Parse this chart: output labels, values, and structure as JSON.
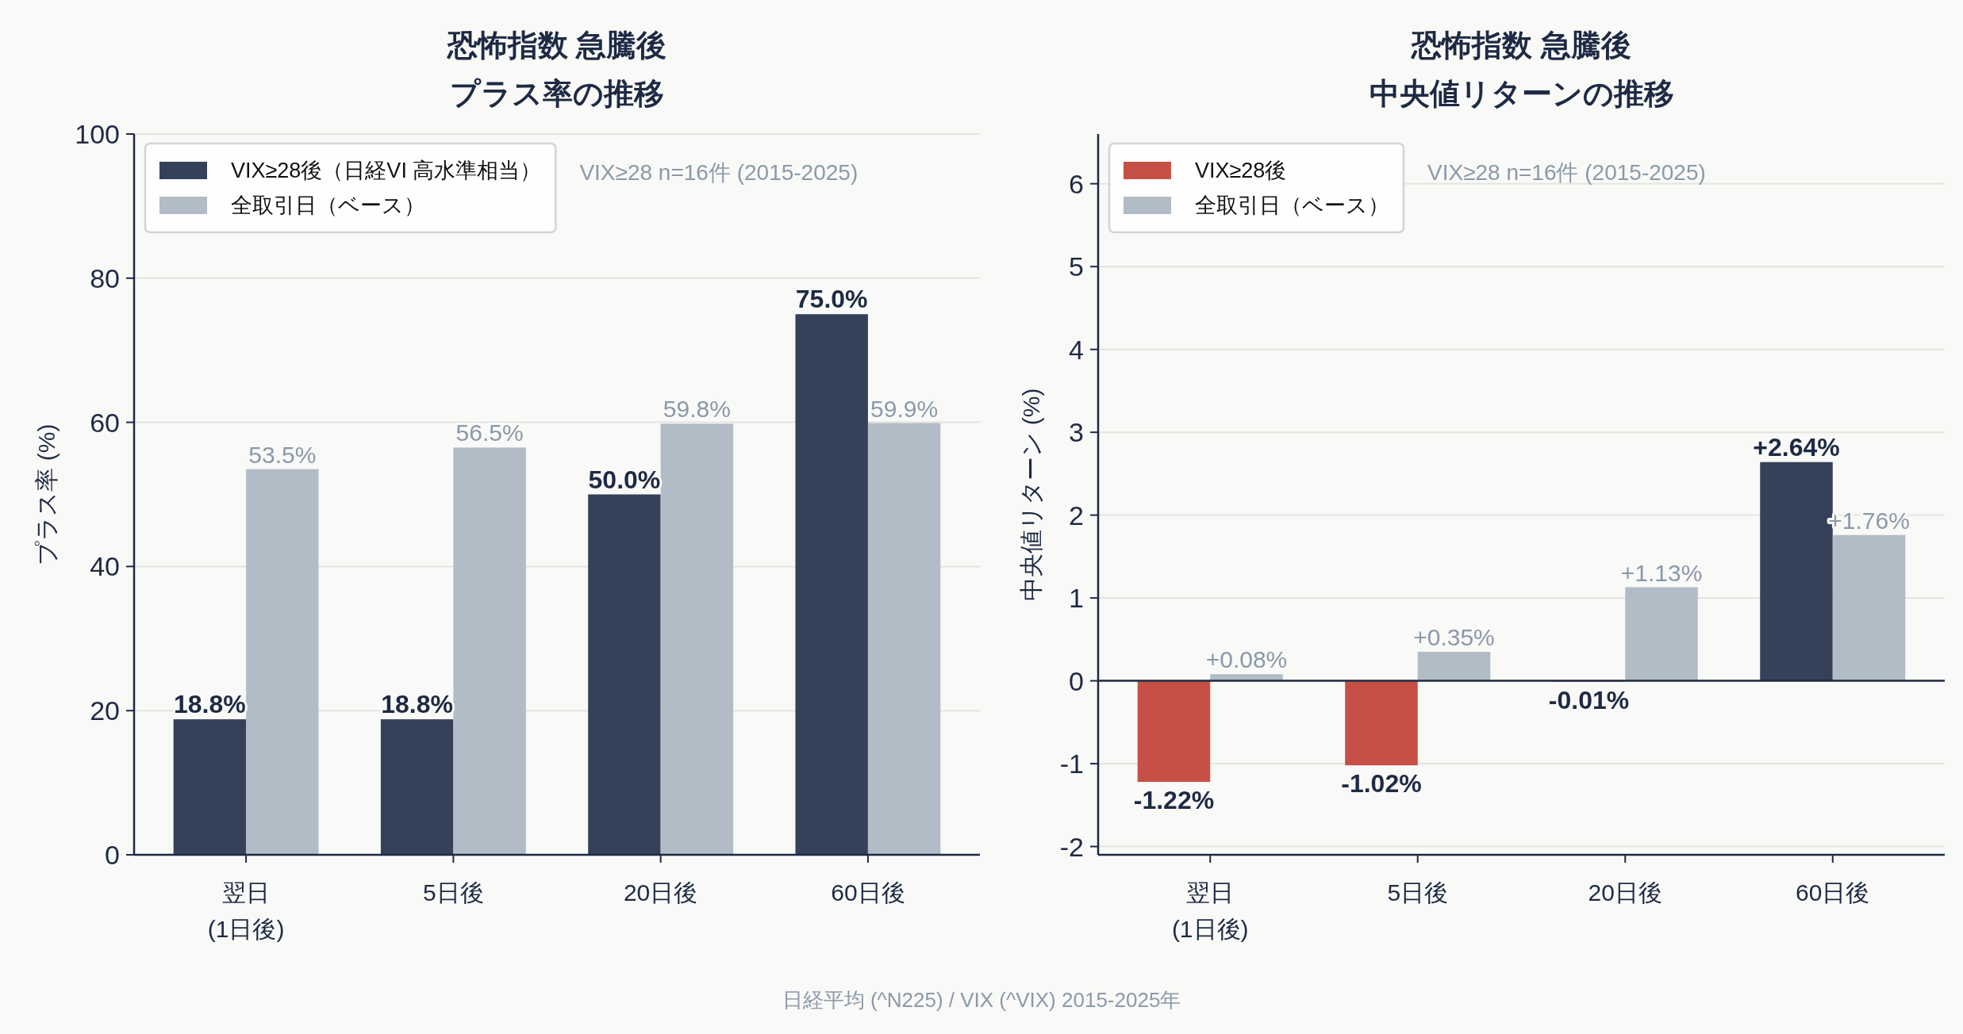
{
  "chart_data": [
    {
      "type": "bar",
      "title": "恐怖指数 急騰後",
      "subtitle": "プラス率の推移",
      "ylabel": "プラス率 (%)",
      "categories": [
        "翌日\n(1日後)",
        "5日後",
        "20日後",
        "60日後"
      ],
      "series": [
        {
          "name": "VIX≥28後（日経VI 高水準相当）",
          "color": "#344159",
          "values": [
            18.8,
            18.8,
            50.0,
            75.0
          ],
          "value_labels": [
            "18.8%",
            "18.8%",
            "50.0%",
            "75.0%"
          ]
        },
        {
          "name": "全取引日（ベース）",
          "color": "#b2bcc6",
          "values": [
            53.5,
            56.5,
            59.8,
            59.9
          ],
          "value_labels": [
            "53.5%",
            "56.5%",
            "59.8%",
            "59.9%"
          ]
        }
      ],
      "ylim": [
        0,
        100
      ],
      "yticks": [
        0,
        20,
        40,
        60,
        80,
        100
      ],
      "grid": "y",
      "legend": "top left",
      "annotations": [
        "VIX≥28 n=16件 (2015-2025)",
        "日経平均 (^N225) / VIX (^VIX) 2015-2025年"
      ]
    },
    {
      "type": "bar",
      "title": "恐怖指数 急騰後",
      "subtitle": "中央値リターンの推移",
      "ylabel": "中央値リターン (%)",
      "categories": [
        "翌日\n(1日後)",
        "5日後",
        "20日後",
        "60日後"
      ],
      "series": [
        {
          "name": "VIX≥28後",
          "color": "#c65046",
          "colors": [
            "#c65046",
            "#c65046",
            "#c65046",
            "#344159"
          ],
          "values": [
            -1.22,
            -1.02,
            -0.01,
            2.64
          ],
          "value_labels": [
            "-1.22%",
            "-1.02%",
            "-0.01%",
            "+2.64%"
          ]
        },
        {
          "name": "全取引日（ベース）",
          "color": "#b2bcc6",
          "values": [
            0.08,
            0.35,
            1.13,
            1.76
          ],
          "value_labels": [
            "+0.08%",
            "+0.35%",
            "+1.13%",
            "+1.76%"
          ]
        }
      ],
      "ylim": [
        -2.1,
        6.6
      ],
      "yticks": [
        -2,
        -1,
        0,
        1,
        2,
        3,
        4,
        5,
        6
      ],
      "grid": "y",
      "legend": "top left",
      "ref_lines": [
        {
          "axis": "y",
          "value": 0,
          "color": "#1e2a44"
        }
      ],
      "annotations": [
        "VIX≥28 n=16件 (2015-2025)"
      ]
    }
  ]
}
